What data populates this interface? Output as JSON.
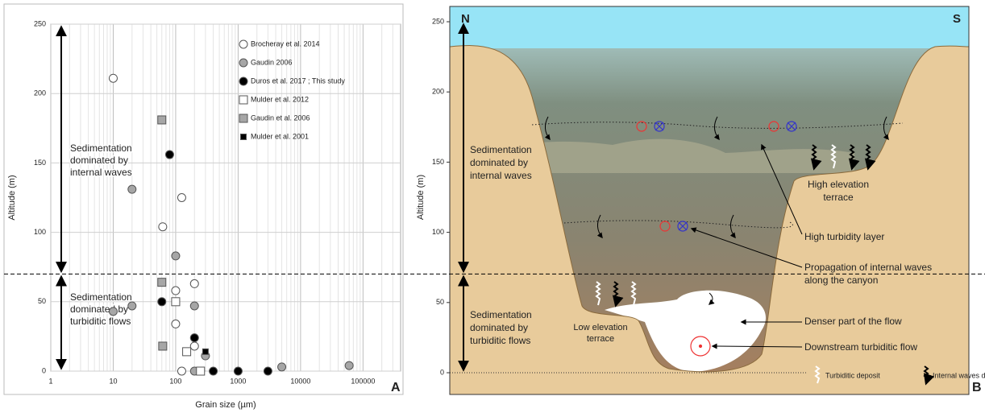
{
  "chart_data": [
    {
      "type": "scatter",
      "xlabel": "Grain size (µm)",
      "ylabel": "Altitude (m)",
      "panel_label": "A",
      "xlog": true,
      "xlim": [
        1,
        400000
      ],
      "xticks": [
        1,
        10,
        100,
        1000,
        10000,
        100000
      ],
      "ylim": [
        0,
        250
      ],
      "yticks": [
        0,
        50,
        100,
        150,
        200,
        250
      ],
      "grid": true,
      "reference_line": 70,
      "annotations": [
        [
          "Sedimentation",
          "dominated by",
          "internal waves"
        ],
        [
          "Sedimentation",
          "dominated by",
          "turbiditic flows"
        ]
      ],
      "series": [
        {
          "name": "Brocheray et al. 2014",
          "marker": "circle",
          "color": "#ffffff",
          "x": [
            10,
            125,
            62,
            100,
            200,
            100,
            200,
            125,
            250
          ],
          "values": [
            211,
            125,
            104,
            58,
            63,
            34,
            18,
            0,
            0
          ]
        },
        {
          "name": "Gaudin 2006",
          "marker": "circle",
          "color": "#a6a6a6",
          "x": [
            20,
            100,
            10,
            20,
            200,
            300,
            200,
            5000,
            60000
          ],
          "values": [
            131,
            83,
            43,
            47,
            47,
            11,
            0,
            3,
            4
          ]
        },
        {
          "name": "Duros et al. 2017 ; This study",
          "marker": "circle",
          "color": "#000000",
          "x": [
            80,
            60,
            200,
            400,
            1000,
            3000
          ],
          "values": [
            156,
            50,
            24,
            0,
            0,
            0
          ]
        },
        {
          "name": "Mulder et al. 2012",
          "marker": "square",
          "color": "#ffffff",
          "x": [
            100,
            150,
            250
          ],
          "values": [
            50,
            14,
            0
          ]
        },
        {
          "name": "Gaudin et al. 2006",
          "marker": "square",
          "color": "#a6a6a6",
          "x": [
            60,
            60,
            62
          ],
          "values": [
            181,
            64,
            18
          ]
        },
        {
          "name": "Mulder et al. 2001",
          "marker": "square-small",
          "color": "#000000",
          "x": [
            300
          ],
          "values": [
            14
          ]
        }
      ]
    }
  ],
  "diagram": {
    "panel_label": "B",
    "ylabel": "Altitude (m)",
    "ylim": [
      0,
      250
    ],
    "yticks": [
      0,
      50,
      100,
      150,
      200,
      250
    ],
    "north": "N",
    "south": "S",
    "zone_upper": [
      "Sedimentation",
      "dominated by",
      "internal waves"
    ],
    "zone_lower": [
      "Sedimentation",
      "dominated by",
      "turbiditic flows"
    ],
    "high_terrace": [
      "High elevation",
      "terrace"
    ],
    "low_terrace": [
      "Low elevation",
      "terrace"
    ],
    "turbidity_layer": "High turbidity layer",
    "propagation": [
      "Propagation of internal waves",
      "along the canyon"
    ],
    "denser_flow": "Denser part of the flow",
    "downstream_flow": "Downstream turbiditic flow",
    "legend_turbiditic": "Turbiditic deposit",
    "legend_internal": "Internal waves deposit"
  }
}
